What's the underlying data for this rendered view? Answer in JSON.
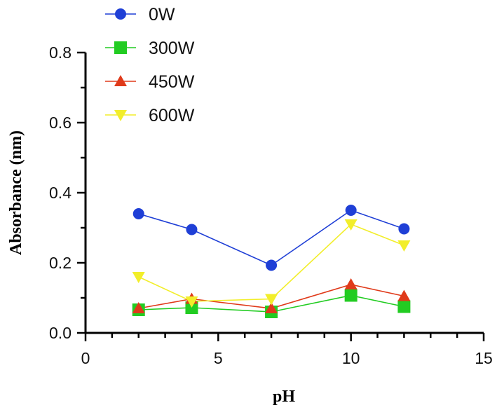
{
  "chart_data": {
    "type": "line",
    "title": "",
    "xlabel": "pH",
    "ylabel": "Absorbance (nm)",
    "xlim": [
      0,
      15
    ],
    "ylim": [
      0.0,
      0.8
    ],
    "xticks": [
      0,
      5,
      10,
      15
    ],
    "xtick_labels": [
      "0",
      "5",
      "10",
      "15"
    ],
    "yticks": [
      0.0,
      0.2,
      0.4,
      0.6,
      0.8
    ],
    "ytick_labels": [
      "0.0",
      "0.2",
      "0.4",
      "0.6",
      "0.8"
    ],
    "grid": false,
    "legend_position": "top-left",
    "x": [
      2,
      4,
      7,
      10,
      12
    ],
    "series": [
      {
        "name": "0W",
        "marker": "circle",
        "color": "#1f3fd6",
        "values": [
          0.34,
          0.295,
          0.193,
          0.35,
          0.297
        ]
      },
      {
        "name": "300W",
        "marker": "square",
        "color": "#22cc22",
        "values": [
          0.066,
          0.072,
          0.06,
          0.107,
          0.075
        ]
      },
      {
        "name": "450W",
        "marker": "triangle-up",
        "color": "#e03a1a",
        "values": [
          0.07,
          0.097,
          0.07,
          0.138,
          0.105
        ]
      },
      {
        "name": "600W",
        "marker": "triangle-down",
        "color": "#f2ee2a",
        "values": [
          0.16,
          0.09,
          0.097,
          0.31,
          0.25
        ]
      }
    ]
  }
}
